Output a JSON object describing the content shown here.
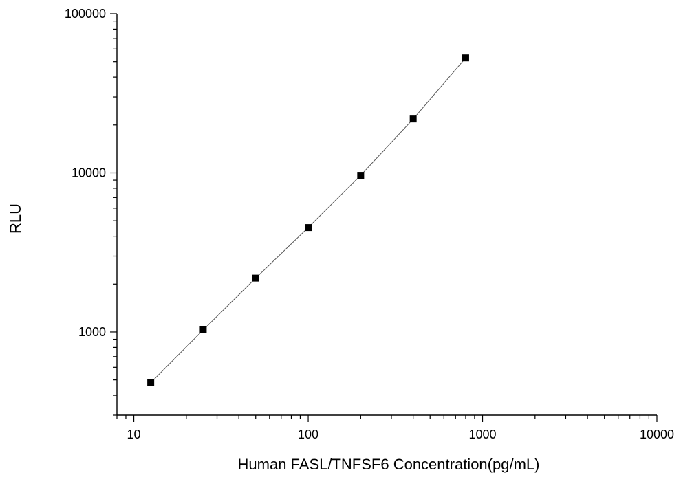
{
  "chart_data": {
    "type": "scatter",
    "xlabel": "Human FASL/TNFSF6 Concentration(pg/mL)",
    "ylabel": "RLU",
    "x_scale": "log",
    "y_scale": "log",
    "xlim": [
      8,
      10000
    ],
    "ylim": [
      300,
      100000
    ],
    "x_ticks": [
      10,
      100,
      1000,
      10000
    ],
    "x_tick_labels": [
      "10",
      "100",
      "1000",
      "10000"
    ],
    "y_ticks": [
      1000,
      10000,
      100000
    ],
    "y_tick_labels": [
      "1000",
      "10000",
      "100000"
    ],
    "grid": false,
    "series": [
      {
        "x": [
          12.5,
          25,
          50,
          100,
          200,
          400,
          800
        ],
        "y": [
          480,
          1030,
          2180,
          4530,
          9650,
          21800,
          52800
        ],
        "marker": "square",
        "fit_line": true,
        "color": "#000000"
      }
    ]
  }
}
